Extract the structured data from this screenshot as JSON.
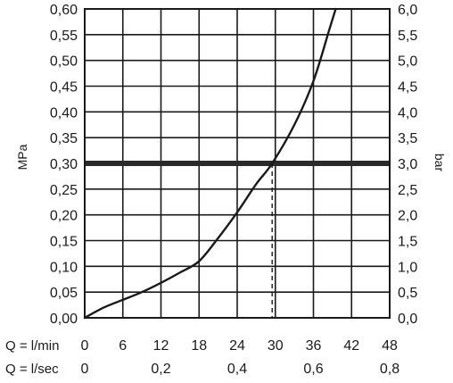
{
  "chart_data": {
    "type": "line",
    "title": "",
    "ylabel_left": "MPa",
    "ylabel_right": "bar",
    "xlabel_primary": "Q = l/min",
    "xlabel_secondary": "Q = l/sec",
    "xlim": [
      0,
      48
    ],
    "ylim": [
      0,
      0.6
    ],
    "ylim_right": [
      0,
      6.0
    ],
    "grid": true,
    "x_ticks_primary": [
      {
        "value": 0,
        "label": "0"
      },
      {
        "value": 6,
        "label": "6"
      },
      {
        "value": 12,
        "label": "12"
      },
      {
        "value": 18,
        "label": "18"
      },
      {
        "value": 24,
        "label": "24"
      },
      {
        "value": 30,
        "label": "30"
      },
      {
        "value": 36,
        "label": "36"
      },
      {
        "value": 42,
        "label": "42"
      },
      {
        "value": 48,
        "label": "48"
      }
    ],
    "x_ticks_secondary": [
      {
        "value": 0,
        "label": "0"
      },
      {
        "value": 0.2,
        "label": "0,2"
      },
      {
        "value": 0.4,
        "label": "0,4"
      },
      {
        "value": 0.6,
        "label": "0,6"
      },
      {
        "value": 0.8,
        "label": "0,8"
      }
    ],
    "y_ticks_left": [
      {
        "value": 0.0,
        "label": "0,00"
      },
      {
        "value": 0.05,
        "label": "0,05"
      },
      {
        "value": 0.1,
        "label": "0,10"
      },
      {
        "value": 0.15,
        "label": "0,15"
      },
      {
        "value": 0.2,
        "label": "0,20"
      },
      {
        "value": 0.25,
        "label": "0,25"
      },
      {
        "value": 0.3,
        "label": "0,30"
      },
      {
        "value": 0.35,
        "label": "0,35"
      },
      {
        "value": 0.4,
        "label": "0,40"
      },
      {
        "value": 0.45,
        "label": "0,45"
      },
      {
        "value": 0.5,
        "label": "0,50"
      },
      {
        "value": 0.55,
        "label": "0,55"
      },
      {
        "value": 0.6,
        "label": "0,60"
      }
    ],
    "y_ticks_right": [
      {
        "value": 0.0,
        "label": "0,0"
      },
      {
        "value": 0.5,
        "label": "0,5"
      },
      {
        "value": 1.0,
        "label": "1,0"
      },
      {
        "value": 1.5,
        "label": "1,5"
      },
      {
        "value": 2.0,
        "label": "2,0"
      },
      {
        "value": 2.5,
        "label": "2,5"
      },
      {
        "value": 3.0,
        "label": "3,0"
      },
      {
        "value": 3.5,
        "label": "3,5"
      },
      {
        "value": 4.0,
        "label": "4,0"
      },
      {
        "value": 4.5,
        "label": "4,5"
      },
      {
        "value": 5.0,
        "label": "5,0"
      },
      {
        "value": 5.5,
        "label": "5,5"
      },
      {
        "value": 6.0,
        "label": "6,0"
      }
    ],
    "series": [
      {
        "x": [
          0,
          3,
          6,
          9,
          12,
          15,
          18,
          21,
          24,
          27,
          29.5,
          33,
          36,
          38.5,
          39.5
        ],
        "y": [
          0.0,
          0.02,
          0.035,
          0.05,
          0.068,
          0.088,
          0.11,
          0.155,
          0.205,
          0.26,
          0.3,
          0.375,
          0.46,
          0.56,
          0.6
        ]
      }
    ],
    "reference_line": {
      "y": 0.3
    },
    "marker_line": {
      "x": 29.5,
      "y": 0.3,
      "style": "dashed"
    },
    "colors": {
      "line": "#1a1a1a",
      "grid": "#1a1a1a",
      "reference": "#2a2a2a"
    }
  }
}
